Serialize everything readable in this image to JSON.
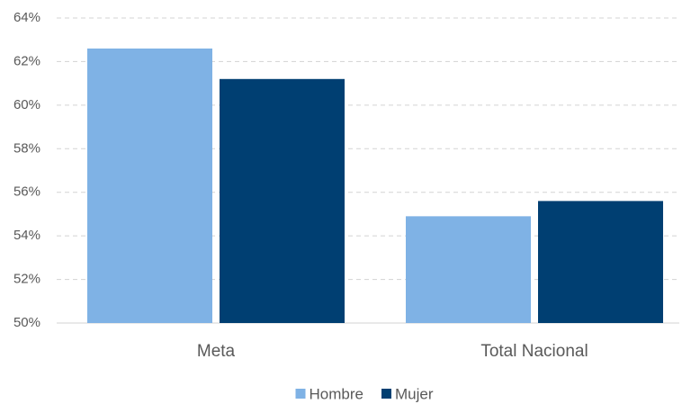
{
  "chart_data": {
    "type": "bar",
    "categories": [
      "Meta",
      "Total Nacional"
    ],
    "series": [
      {
        "name": "Hombre",
        "color": "#7fb2e5",
        "values": [
          62.6,
          54.9
        ]
      },
      {
        "name": "Mujer",
        "color": "#003f72",
        "values": [
          61.2,
          55.6
        ]
      }
    ],
    "ylim": [
      50,
      64
    ],
    "yticks": [
      {
        "value": 50,
        "label": "50%"
      },
      {
        "value": 52,
        "label": "52%"
      },
      {
        "value": 54,
        "label": "54%"
      },
      {
        "value": 56,
        "label": "56%"
      },
      {
        "value": 58,
        "label": "58%"
      },
      {
        "value": 60,
        "label": "60%"
      },
      {
        "value": 62,
        "label": "62%"
      },
      {
        "value": 64,
        "label": "64%"
      }
    ],
    "grid": true,
    "legend": "bottom"
  }
}
